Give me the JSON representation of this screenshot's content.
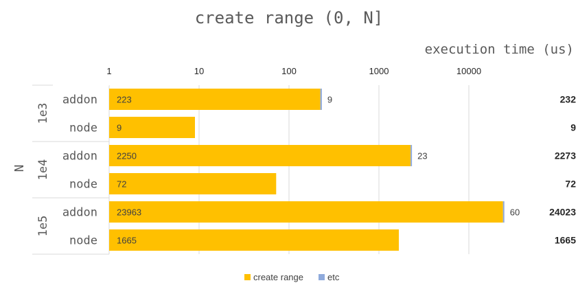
{
  "chart_data": {
    "type": "bar",
    "orientation": "horizontal",
    "stacked": true,
    "title": "create range (0, N]",
    "xlabel": "execution time (us)",
    "ylabel": "N",
    "x_scale": "log",
    "xlim": [
      1,
      100000
    ],
    "x_ticks": [
      "1",
      "10",
      "100",
      "1000",
      "10000"
    ],
    "groups": [
      "1e3",
      "1e4",
      "1e5"
    ],
    "categories": [
      "addon",
      "node",
      "addon",
      "node",
      "addon",
      "node"
    ],
    "series": [
      {
        "name": "create range",
        "color": "#FFC000",
        "values": [
          223,
          9,
          2250,
          72,
          23963,
          1665
        ]
      },
      {
        "name": "etc",
        "color": "#8FAADC",
        "values": [
          9,
          0,
          23,
          0,
          60,
          0
        ]
      }
    ],
    "data_labels": {
      "create range": [
        "223",
        "9",
        "2250",
        "72",
        "23963",
        "1665"
      ],
      "etc": [
        "9",
        "",
        "23",
        "",
        "60",
        ""
      ]
    },
    "totals": [
      "232",
      "9",
      "2273",
      "72",
      "24023",
      "1665"
    ],
    "grid": true,
    "legend": "bottom"
  }
}
